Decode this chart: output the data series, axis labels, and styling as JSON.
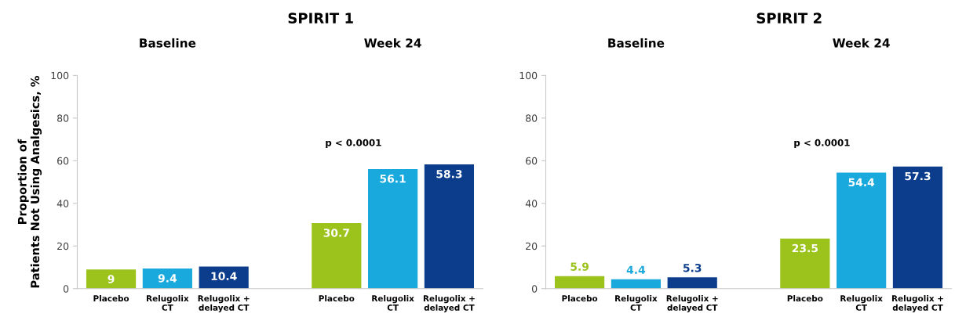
{
  "chart_data": [
    {
      "type": "bar",
      "title": "SPIRIT 1",
      "ylabel": "Proportion of\nPatients Not Using Analgesics, %",
      "categories": [
        "Placebo",
        "Relugolix\nCT",
        "Relugolix +\ndelayed CT",
        null,
        "Placebo",
        "Relugolix\nCT",
        "Relugolix +\ndelayed CT"
      ],
      "values": [
        9,
        9.4,
        10.4,
        null,
        30.7,
        56.1,
        58.3
      ],
      "colors": [
        "#9bc31c",
        "#1aa9dc",
        "#0b3d8c",
        "#ffffff",
        "#9bc31c",
        "#1aa9dc",
        "#0b3d8c"
      ],
      "data_labels": true,
      "ylim": [
        0,
        100
      ],
      "yticks": [
        0,
        20,
        40,
        60,
        80,
        100
      ],
      "grid": false,
      "annotations": [
        "Baseline",
        "Week 24",
        "p < 0.0001"
      ]
    },
    {
      "type": "bar",
      "title": "SPIRIT 2",
      "categories": [
        "Placebo",
        "Relugolix\nCT",
        "Relugolix +\ndelayed CT",
        null,
        "Placebo",
        "Relugolix\nCT",
        "Relugolix +\ndelayed CT"
      ],
      "values": [
        5.9,
        4.4,
        5.3,
        null,
        23.5,
        54.4,
        57.3
      ],
      "colors": [
        "#9bc31c",
        "#1aa9dc",
        "#0b3d8c",
        "#ffffff",
        "#9bc31c",
        "#1aa9dc",
        "#0b3d8c"
      ],
      "data_labels": true,
      "ylim": [
        0,
        100
      ],
      "yticks": [
        0,
        20,
        40,
        60,
        80,
        100
      ],
      "grid": false,
      "annotations": [
        "Baseline",
        "Week 24",
        "p < 0.0001"
      ]
    }
  ]
}
